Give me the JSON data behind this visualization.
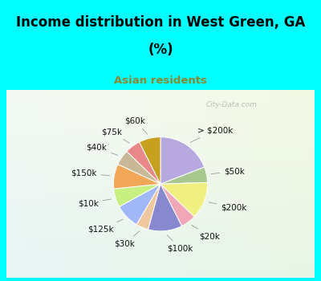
{
  "title_line1": "Income distribution in West Green, GA",
  "title_line2": "(%)",
  "subtitle": "Asian residents",
  "title_color": "#000000",
  "subtitle_color": "#888833",
  "bg_cyan": "#00ffff",
  "watermark": "City-Data.com",
  "labels": [
    "> $200k",
    "$50k",
    "$200k",
    "$20k",
    "$100k",
    "$30k",
    "$125k",
    "$10k",
    "$150k",
    "$40k",
    "$75k",
    "$60k"
  ],
  "values": [
    18,
    5,
    12,
    5,
    11,
    4,
    8,
    6,
    8,
    5,
    5,
    7
  ],
  "colors": [
    "#b8a8e0",
    "#a8c890",
    "#f0f080",
    "#f0a8b8",
    "#8888d0",
    "#f0c8a0",
    "#a0b8f8",
    "#c8f080",
    "#f0a858",
    "#c8b898",
    "#e88888",
    "#c8a020"
  ],
  "label_fontsize": 7.5,
  "start_angle": 90
}
